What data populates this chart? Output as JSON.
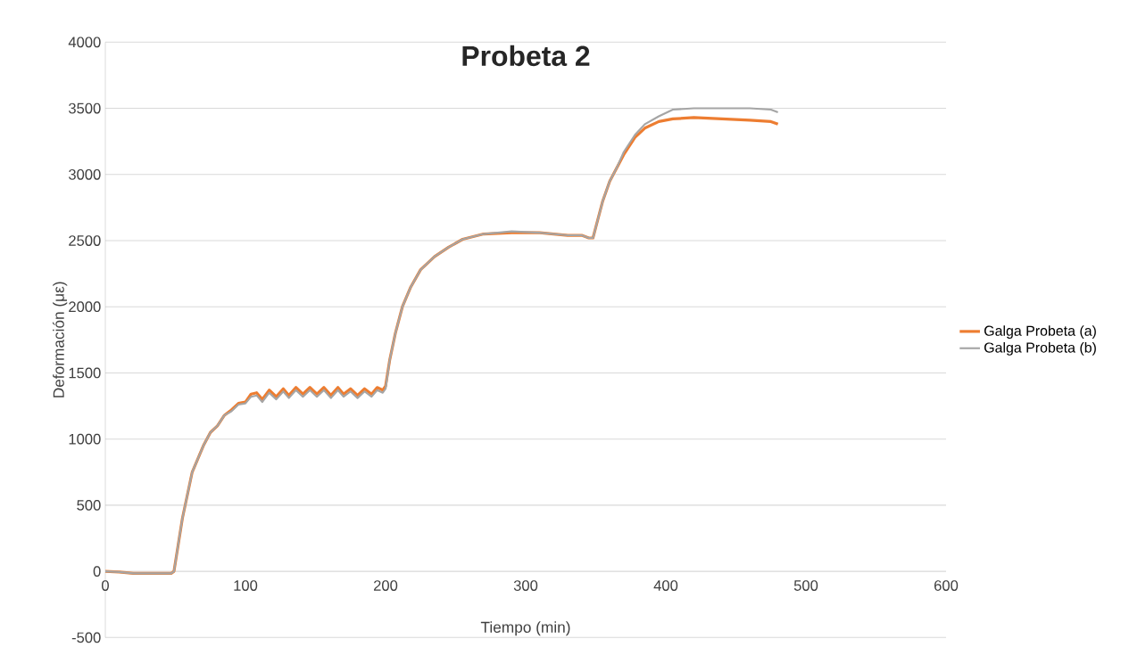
{
  "chart_data": {
    "type": "line",
    "title": "Probeta 2",
    "xlabel": "Tiempo (min)",
    "ylabel": "Deformación  (με)",
    "xlim": [
      0,
      600
    ],
    "xticks": [
      0,
      100,
      200,
      300,
      400,
      500,
      600
    ],
    "ylim": [
      -500,
      4000
    ],
    "yticks": [
      -500,
      0,
      500,
      1000,
      1500,
      2000,
      2500,
      3000,
      3500,
      4000
    ],
    "grid": "y",
    "legend": "right",
    "series": [
      {
        "name": "Galga Probeta (a)",
        "color": "#ed7d31",
        "x": [
          0,
          10,
          20,
          30,
          40,
          47,
          49,
          52,
          55,
          58,
          62,
          66,
          70,
          75,
          80,
          85,
          90,
          95,
          100,
          104,
          108,
          112,
          117,
          122,
          127,
          131,
          136,
          141,
          146,
          151,
          156,
          161,
          166,
          170,
          175,
          180,
          185,
          190,
          194,
          198,
          200,
          203,
          207,
          212,
          218,
          225,
          235,
          245,
          255,
          270,
          290,
          310,
          330,
          340,
          345,
          348,
          350,
          355,
          360,
          365,
          370,
          378,
          385,
          395,
          405,
          420,
          440,
          460,
          475,
          480
        ],
        "values": [
          0,
          -5,
          -15,
          -15,
          -15,
          -15,
          0,
          200,
          400,
          550,
          750,
          850,
          950,
          1050,
          1100,
          1180,
          1220,
          1270,
          1280,
          1340,
          1350,
          1300,
          1370,
          1320,
          1380,
          1330,
          1390,
          1340,
          1390,
          1340,
          1390,
          1330,
          1390,
          1340,
          1380,
          1330,
          1380,
          1340,
          1390,
          1370,
          1400,
          1600,
          1800,
          2000,
          2150,
          2280,
          2380,
          2450,
          2510,
          2550,
          2560,
          2560,
          2540,
          2540,
          2520,
          2520,
          2600,
          2800,
          2950,
          3050,
          3150,
          3280,
          3350,
          3400,
          3420,
          3430,
          3420,
          3410,
          3400,
          3380
        ]
      },
      {
        "name": "Galga Probeta (b)",
        "color": "#a5a5a5",
        "x": [
          0,
          10,
          20,
          30,
          40,
          47,
          49,
          52,
          55,
          58,
          62,
          66,
          70,
          75,
          80,
          85,
          90,
          95,
          100,
          104,
          108,
          112,
          117,
          122,
          127,
          131,
          136,
          141,
          146,
          151,
          156,
          161,
          166,
          170,
          175,
          180,
          185,
          190,
          194,
          198,
          200,
          203,
          207,
          212,
          218,
          225,
          235,
          245,
          255,
          270,
          290,
          310,
          330,
          340,
          345,
          348,
          350,
          355,
          360,
          365,
          370,
          378,
          385,
          395,
          405,
          420,
          440,
          460,
          475,
          480
        ],
        "values": [
          0,
          -5,
          -15,
          -15,
          -15,
          -15,
          0,
          200,
          400,
          550,
          750,
          850,
          950,
          1050,
          1100,
          1180,
          1210,
          1260,
          1270,
          1320,
          1330,
          1280,
          1350,
          1300,
          1360,
          1310,
          1370,
          1320,
          1370,
          1320,
          1370,
          1310,
          1370,
          1320,
          1360,
          1310,
          1360,
          1320,
          1370,
          1350,
          1380,
          1600,
          1800,
          2000,
          2150,
          2280,
          2380,
          2450,
          2510,
          2550,
          2570,
          2560,
          2540,
          2540,
          2520,
          2520,
          2600,
          2800,
          2950,
          3050,
          3170,
          3300,
          3380,
          3440,
          3490,
          3500,
          3500,
          3500,
          3490,
          3470
        ]
      }
    ]
  }
}
